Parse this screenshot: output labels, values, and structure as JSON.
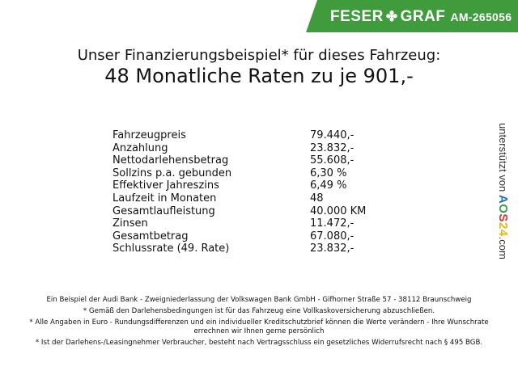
{
  "header": {
    "brand_left": "FESER",
    "brand_right": "GRAF",
    "brand_icon": "clover-icon",
    "ad_id": "AM-265056",
    "brand_color": "#3f9b3c"
  },
  "title": {
    "line1": "Unser Finanzierungsbeispiel* für dieses Fahrzeug:",
    "line2": "48 Monatliche Raten zu je 901,-"
  },
  "rows": [
    {
      "label": "Fahrzeugpreis",
      "value": "79.440,-"
    },
    {
      "label": "Anzahlung",
      "value": "23.832,-"
    },
    {
      "label": "Nettodarlehensbetrag",
      "value": "55.608,-"
    },
    {
      "label": "Sollzins p.a. gebunden",
      "value": "6,30 %"
    },
    {
      "label": "Effektiver Jahreszins",
      "value": "6,49 %"
    },
    {
      "label": "Laufzeit in Monaten",
      "value": "48"
    },
    {
      "label": "Gesamtlaufleistung",
      "value": "40.000 KM"
    },
    {
      "label": "Zinsen",
      "value": "11.472,-"
    },
    {
      "label": "Gesamtbetrag",
      "value": "67.080,-"
    },
    {
      "label": "Schlussrate (49. Rate)",
      "value": "23.832,-"
    }
  ],
  "side": {
    "prefix": "unterstützt von",
    "logo": "AOS24",
    "suffix": ".com"
  },
  "footer": [
    "Ein Beispiel der Audi Bank - Zweigniederlassung der Volkswagen Bank GmbH - Gifhorner Straße 57 - 38112 Braunschweig",
    "* Gemäß den Darlehensbedingungen ist für das Fahrzeug eine Vollkaskoversicherung abzuschließen.",
    "* Alle Angaben in Euro - Rundungsdifferenzen und ein individueller Kreditschutzbrief können die Werte verändern - Ihre Wunschrate errechnen wir Ihnen gerne persönlich",
    "* Ist der Darlehens-/Leasingnehmer Verbraucher, besteht nach Vertragsschluss ein gesetzliches Widerrufsrecht nach § 495 BGB."
  ]
}
